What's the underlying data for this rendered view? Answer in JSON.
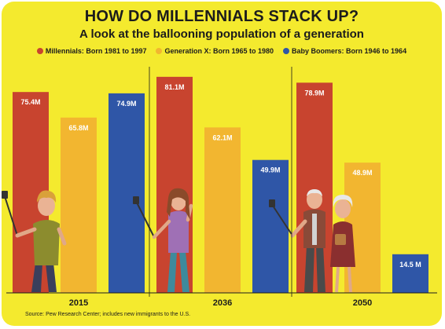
{
  "title": "HOW DO MILLENNIALS STACK UP?",
  "subtitle": "A look at the ballooning population of a generation",
  "source": "Source: Pew Research Center; includes new immigrants to the U.S.",
  "chart_data": {
    "type": "bar",
    "title": "HOW DO MILLENNIALS STACK UP?",
    "subtitle": "A look at the ballooning population of a generation",
    "categories": [
      "2015",
      "2036",
      "2050"
    ],
    "series": [
      {
        "name": "Millennials: Born 1981 to 1997",
        "color": "#c8442f",
        "values": [
          75.4,
          81.1,
          78.9
        ],
        "labels": [
          "75.4M",
          "81.1M",
          "78.9M"
        ]
      },
      {
        "name": "Generation X: Born 1965 to 1980",
        "color": "#f2b630",
        "values": [
          65.8,
          62.1,
          48.9
        ],
        "labels": [
          "65.8M",
          "62.1M",
          "48.9M"
        ]
      },
      {
        "name": "Baby Boomers: Born 1946 to 1964",
        "color": "#2f56a7",
        "values": [
          74.9,
          49.9,
          14.5
        ],
        "labels": [
          "74.9M",
          "49.9M",
          "14.5 M"
        ]
      }
    ],
    "ylim": [
      0,
      84
    ],
    "legend_position": "top",
    "grid": false
  }
}
